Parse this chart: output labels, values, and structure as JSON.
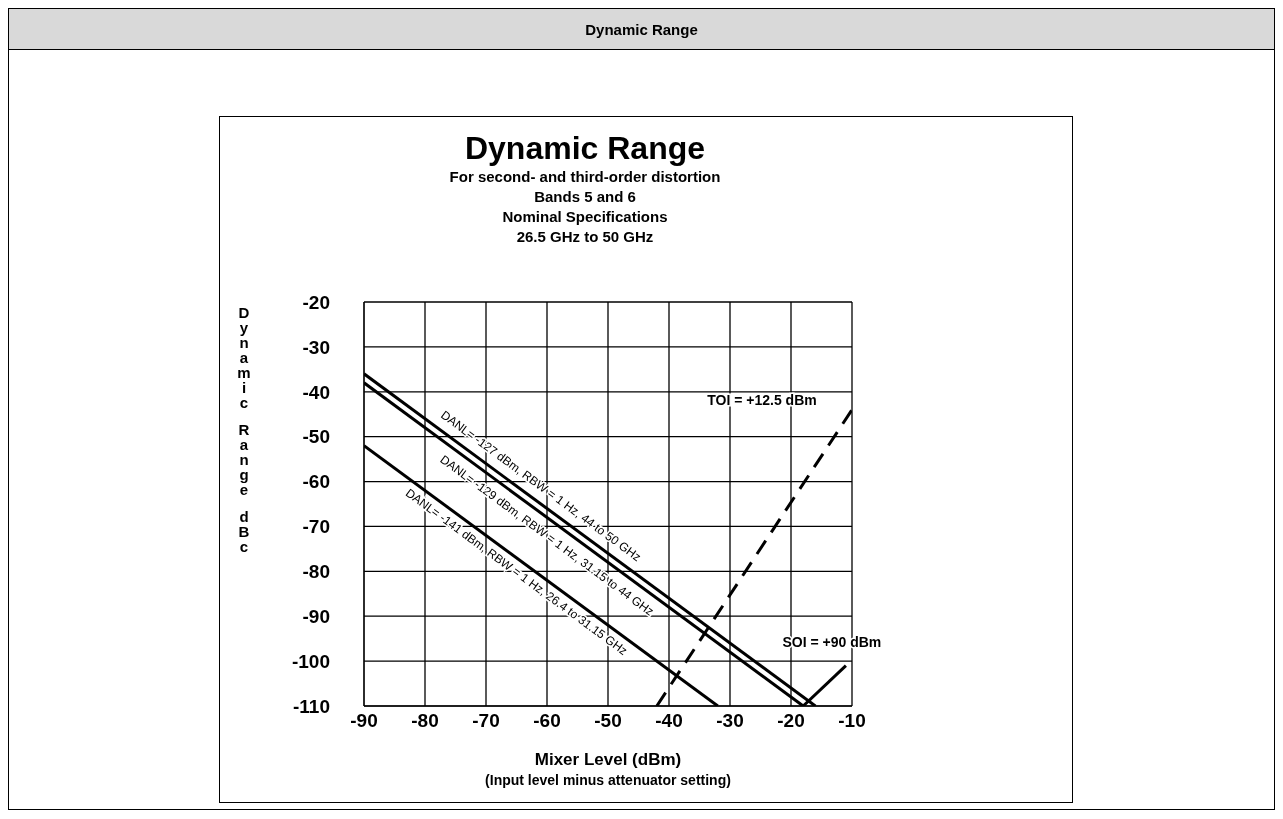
{
  "chart_data": {
    "type": "line",
    "title": "Dynamic Range",
    "subtitle": "For second- and third-order distortion\nBands 5 and 6\nNominal Specifications\n26.5 GHz to 50 GHz",
    "xlabel": "Mixer Level (dBm)\n(Input level minus attenuator setting)",
    "ylabel": "Dynamic Range dBc",
    "xlim": [
      -90,
      -10
    ],
    "xticks": [
      -90,
      -80,
      -70,
      -60,
      -50,
      -40,
      -30,
      -20,
      -10
    ],
    "ylim": [
      -110,
      -20
    ],
    "yticks": [
      -110,
      -100,
      -90,
      -80,
      -70,
      -60,
      -50,
      -40,
      -30,
      -20
    ],
    "grid": true,
    "line_style": "solid",
    "series": [
      {
        "color": "#000000",
        "x": [
          -90,
          -16
        ],
        "values": [
          -36,
          -110
        ]
      },
      {
        "color": "#000000",
        "x": [
          -90,
          -18
        ],
        "values": [
          -38,
          -110
        ]
      },
      {
        "color": "#000000",
        "x": [
          -90,
          -32
        ],
        "values": [
          -52,
          -110
        ]
      },
      {
        "color": "#000000",
        "x": [
          -42,
          -10
        ],
        "values": [
          -110,
          -44
        ],
        "line_style": "dashed"
      },
      {
        "color": "#000000",
        "x": [
          -18,
          -11
        ],
        "values": [
          -110,
          -101
        ]
      }
    ],
    "annotations": [
      "Dynamic Range",
      {
        "text": "DANL= -127 dBm,  RBW = 1 Hz, 44 to 50 GHz",
        "x": -61,
        "y": -65
      },
      {
        "text": "DANL= -129 dBm,  RBW = 1 Hz, 31.15 to 44 GHz",
        "x": -60,
        "y": -68
      },
      {
        "text": "DANL= -141 dBm,  RBW = 1 Hz, 26.4 to 31.15 GHz",
        "x": -65,
        "y": -77
      },
      {
        "text": "TOI = +12.5 dBm",
        "x": -10,
        "y": -44
      },
      {
        "text": "SOI = +90 dBm",
        "x": -11,
        "y": -101
      }
    ]
  }
}
